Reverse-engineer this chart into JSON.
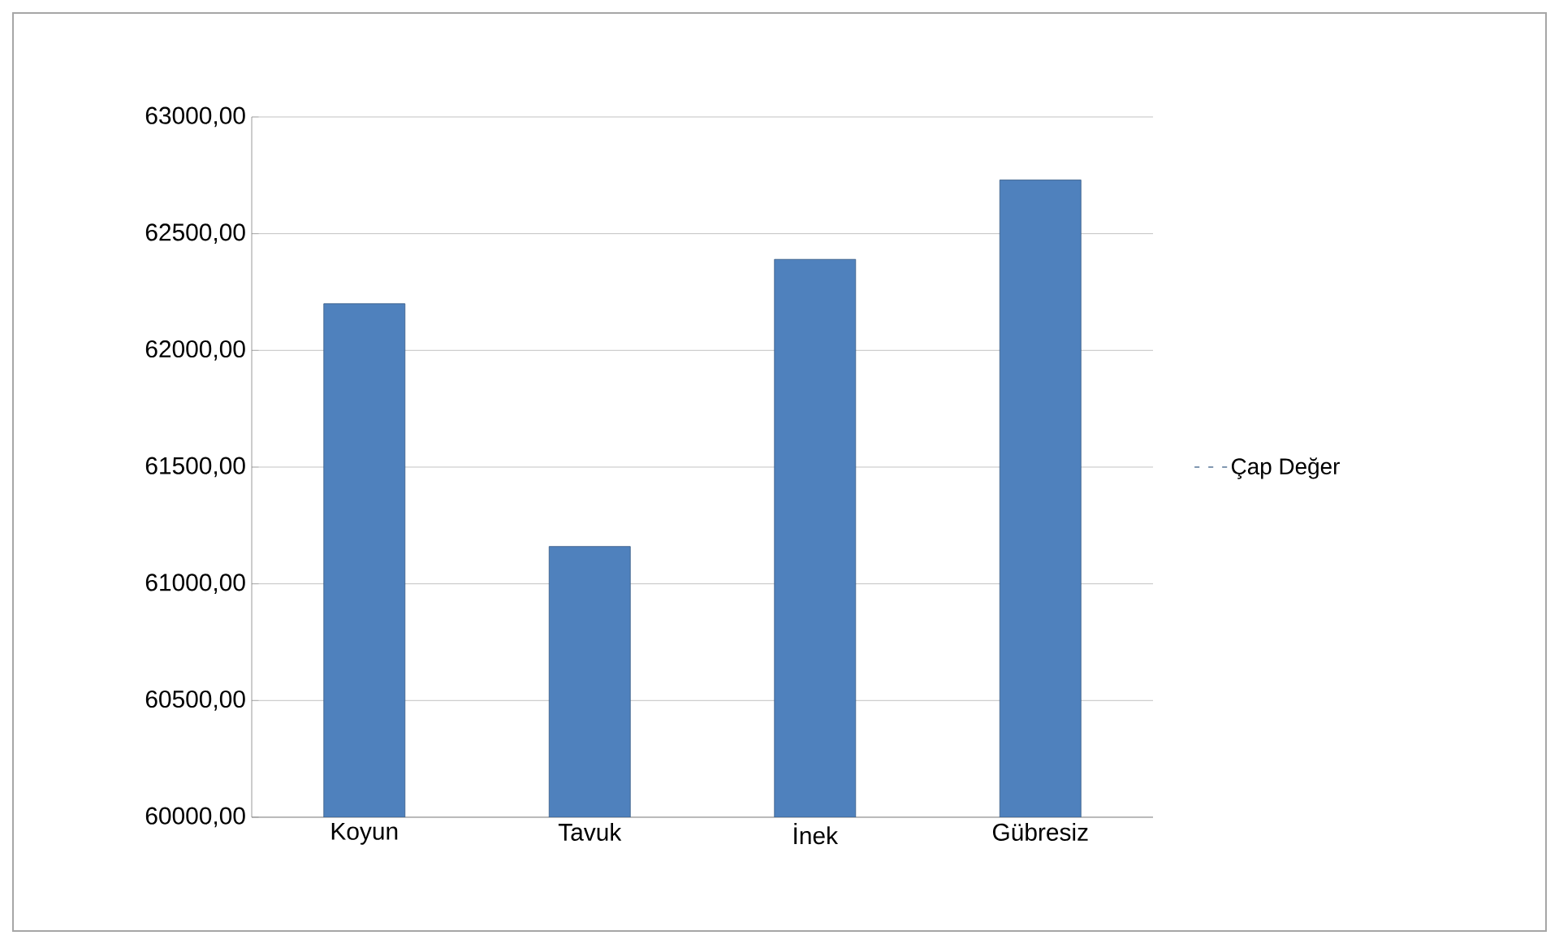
{
  "chart_data": {
    "type": "bar",
    "categories": [
      "Koyun",
      "Tavuk",
      "İnek",
      "Gübresiz"
    ],
    "series": [
      {
        "name": "Çap Değer",
        "color": "#4f81bd",
        "values": [
          62200,
          61160,
          62390,
          62730
        ]
      }
    ],
    "ylim": [
      60000,
      63000
    ],
    "yticks": [
      {
        "value": 60000,
        "label": "60000,00"
      },
      {
        "value": 60500,
        "label": "60500,00"
      },
      {
        "value": 61000,
        "label": "61000,00"
      },
      {
        "value": 61500,
        "label": "61500,00"
      },
      {
        "value": 62000,
        "label": "62000,00"
      },
      {
        "value": 62500,
        "label": "62500,00"
      },
      {
        "value": 63000,
        "label": "63000,00"
      }
    ],
    "grid": "y",
    "legend": "right"
  }
}
